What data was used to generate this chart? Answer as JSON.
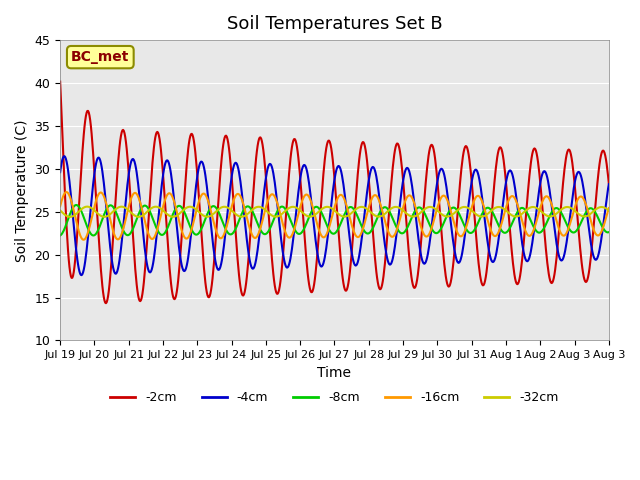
{
  "title": "Soil Temperatures Set B",
  "xlabel": "Time",
  "ylabel": "Soil Temperature (C)",
  "ylim": [
    10,
    45
  ],
  "annotation": "BC_met",
  "legend_labels": [
    "-2cm",
    "-4cm",
    "-8cm",
    "-16cm",
    "-32cm"
  ],
  "legend_colors": [
    "#cc0000",
    "#0000cc",
    "#00cc00",
    "#ff9900",
    "#cccc00"
  ],
  "bg_color": "#e8e8e8",
  "depths_mean": [
    24.5,
    24.5,
    24.0,
    24.5,
    25.0
  ],
  "num_days": 16,
  "samples_per_day": 48,
  "tick_labels": [
    "Jul 19",
    "Jul 20",
    "Jul 21",
    "Jul 22",
    "Jul 23",
    "Jul 24",
    "Jul 25",
    "Jul 26",
    "Jul 27",
    "Jul 28",
    "Jul 29",
    "Jul 30",
    "Jul 31",
    "Aug 1",
    "Aug 2",
    "Aug 3",
    "Aug 3"
  ],
  "yticks": [
    10,
    15,
    20,
    25,
    30,
    35,
    40,
    45
  ]
}
